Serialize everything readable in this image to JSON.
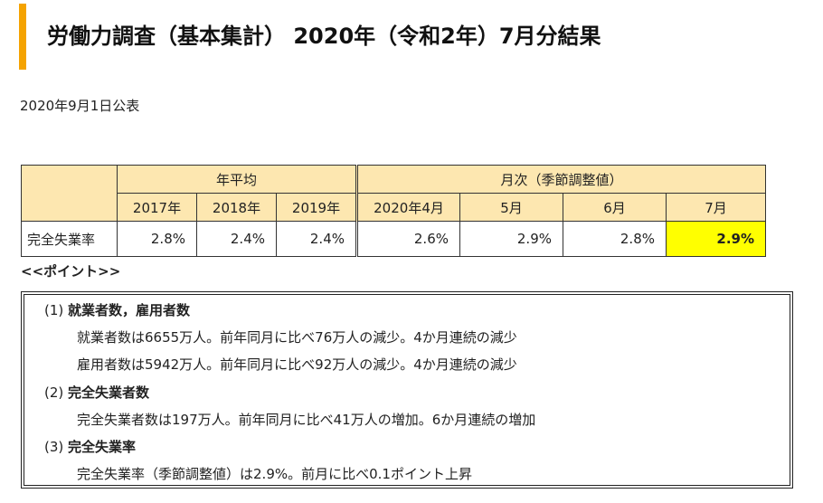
{
  "header": {
    "title": "労働力調査（基本集計） 2020年（令和2年）7月分結果",
    "publish_date": "2020年9月1日公表"
  },
  "table": {
    "group_annual": "年平均",
    "group_monthly": "月次（季節調整値）",
    "columns": [
      "2017年",
      "2018年",
      "2019年",
      "2020年4月",
      "5月",
      "6月",
      "7月"
    ],
    "row_label": "完全失業率",
    "values": [
      "2.8%",
      "2.4%",
      "2.4%",
      "2.6%",
      "2.9%",
      "2.8%",
      "2.9%"
    ]
  },
  "points": {
    "label": "<<ポイント>>",
    "items": [
      {
        "num": "(1)",
        "heading": "就業者数，雇用者数",
        "lines": [
          "就業者数は6655万人。前年同月に比べ76万人の減少。4か月連続の減少",
          "雇用者数は5942万人。前年同月に比べ92万人の減少。4か月連続の減少"
        ]
      },
      {
        "num": "(2)",
        "heading": "完全失業者数",
        "lines": [
          "完全失業者数は197万人。前年同月に比べ41万人の増加。6か月連続の増加"
        ]
      },
      {
        "num": "(3)",
        "heading": "完全失業率",
        "lines": [
          "完全失業率（季節調整値）は2.9%。前月に比べ0.1ポイント上昇"
        ]
      }
    ]
  },
  "colors": {
    "accent_bar": "#f5a300",
    "header_bg": "#fde7b0",
    "highlight": "#ffff00"
  }
}
